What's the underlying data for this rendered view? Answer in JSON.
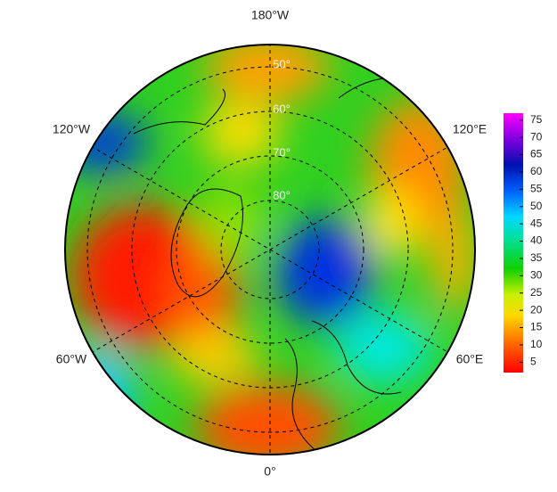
{
  "map": {
    "longitude_labels": [
      "180°W",
      "120°W",
      "120°E",
      "60°W",
      "60°E",
      "0°"
    ],
    "latitude_labels": [
      "50°",
      "60°",
      "70°",
      "80°"
    ],
    "colorbar": {
      "lim": [
        2,
        77
      ],
      "ticks": [
        5,
        10,
        15,
        20,
        25,
        30,
        35,
        40,
        45,
        50,
        55,
        60,
        65,
        70,
        75
      ]
    }
  }
}
